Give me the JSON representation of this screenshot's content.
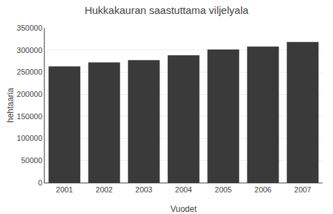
{
  "chart_data": {
    "type": "bar",
    "title": "Hukkakauran saastuttama viljelyala",
    "categories": [
      "2001",
      "2002",
      "2003",
      "2004",
      "2005",
      "2006",
      "2007"
    ],
    "values": [
      263000,
      272000,
      277000,
      288000,
      301000,
      308000,
      318000
    ],
    "color": "#3a3a3a",
    "xlabel": "Vuodet",
    "ylabel": "hehtaaria",
    "ylim": [
      0,
      350000
    ],
    "yticks": [
      0,
      50000,
      100000,
      150000,
      200000,
      250000,
      300000,
      350000
    ],
    "grid": true
  }
}
